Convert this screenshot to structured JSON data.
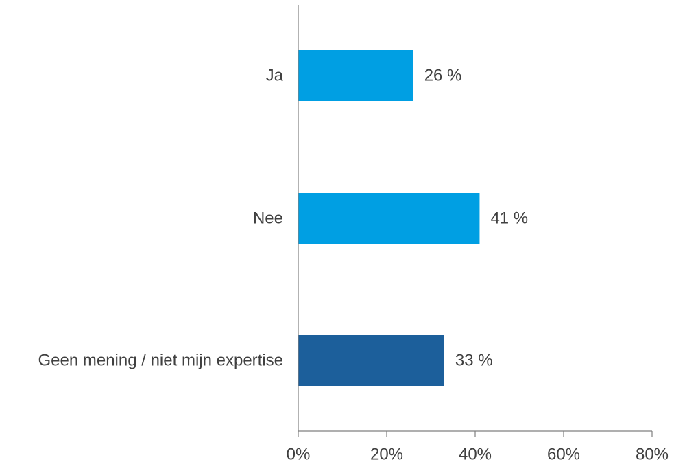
{
  "chart_data": {
    "type": "bar",
    "orientation": "horizontal",
    "categories": [
      "Ja",
      "Nee",
      "Geen mening / niet mijn expertise"
    ],
    "values": [
      26,
      41,
      33
    ],
    "value_labels": [
      "26 %",
      "41 %",
      "33 %"
    ],
    "colors": [
      "#009FE3",
      "#009FE3",
      "#1C5F9B"
    ],
    "xlim": [
      0,
      80
    ],
    "x_ticks": [
      0,
      20,
      40,
      60,
      80
    ],
    "x_tick_labels": [
      "0%",
      "20%",
      "40%",
      "60%",
      "80%"
    ],
    "grid": false,
    "legend": "none",
    "title": "",
    "xlabel": "",
    "ylabel": ""
  },
  "colors": {
    "axis": "#7F7F7F",
    "text": "#404040"
  }
}
